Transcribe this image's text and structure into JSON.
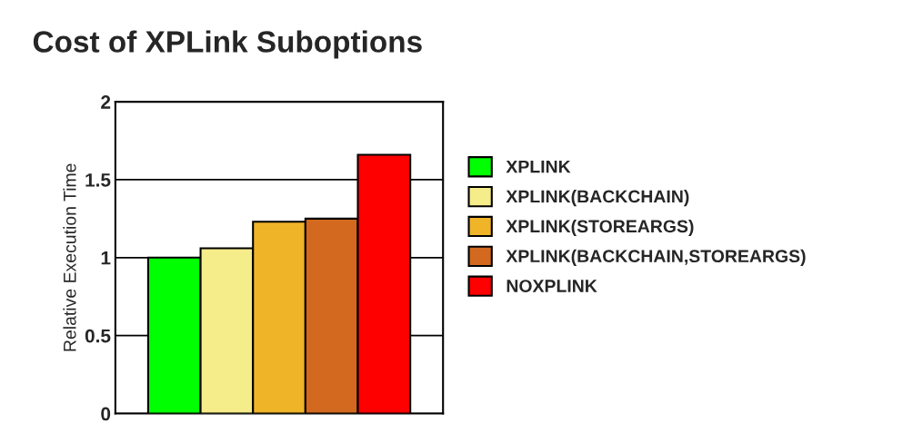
{
  "chart_data": {
    "type": "bar",
    "title": "Cost of XPLink Suboptions",
    "ylabel": "Relative Execution Time",
    "categories": [
      null
    ],
    "series": [
      {
        "name": "XPLINK",
        "color": "#00ff00",
        "values": [
          1.0
        ]
      },
      {
        "name": "XPLINK(BACKCHAIN)",
        "color": "#f5ec8a",
        "values": [
          1.06
        ]
      },
      {
        "name": "XPLINK(STOREARGS)",
        "color": "#f0b429",
        "values": [
          1.23
        ]
      },
      {
        "name": "XPLINK(BACKCHAIN,STOREARGS)",
        "color": "#d2691e",
        "values": [
          1.25
        ]
      },
      {
        "name": "NOXPLINK",
        "color": "#ff0000",
        "values": [
          1.66
        ]
      }
    ],
    "ylim": [
      0,
      2
    ],
    "yticks": [
      0,
      0.5,
      1,
      1.5,
      2
    ],
    "grid": "y",
    "legend": "right"
  }
}
